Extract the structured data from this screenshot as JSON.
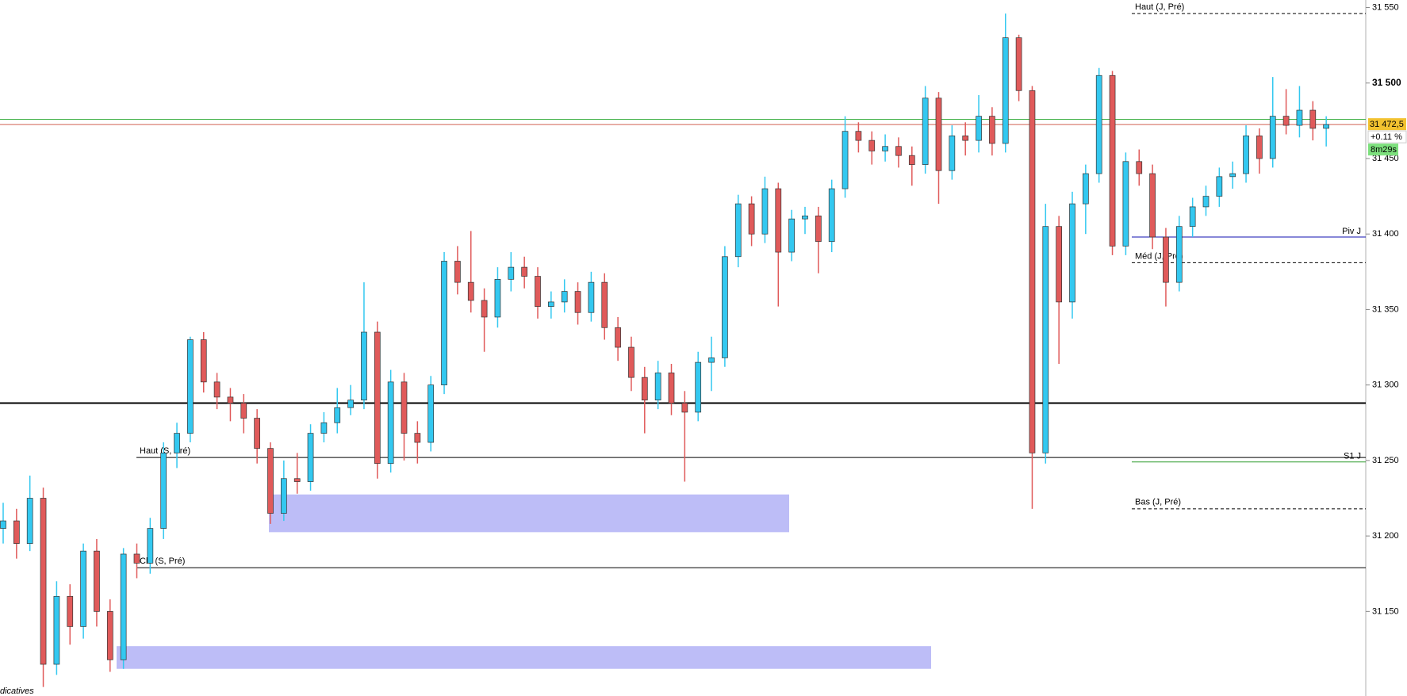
{
  "chart_data": {
    "type": "candlestick",
    "ylim": [
      31094,
      31555
    ],
    "yticks": [
      {
        "value": 31550,
        "label": "31 550"
      },
      {
        "value": 31500,
        "label": "31 500"
      },
      {
        "value": 31450,
        "label": "31 450"
      },
      {
        "value": 31400,
        "label": "31 400"
      },
      {
        "value": 31350,
        "label": "31 350"
      },
      {
        "value": 31300,
        "label": "31 300"
      },
      {
        "value": 31250,
        "label": "31 250"
      },
      {
        "value": 31200,
        "label": "31 200"
      },
      {
        "value": 31150,
        "label": "31 150"
      }
    ],
    "up_color": "#33c8f0",
    "down_color": "#e05a5a",
    "open": [
      31205,
      31210,
      31195,
      31225,
      31115,
      31160,
      31140,
      31190,
      31150,
      31118,
      31188,
      31182,
      31205,
      31255,
      31268,
      31330,
      31302,
      31292,
      31288,
      31278,
      31258,
      31215,
      31238,
      31236,
      31268,
      31275,
      31285,
      31290,
      31335,
      31248,
      31302,
      31268,
      31262,
      31300,
      31382,
      31368,
      31356,
      31345,
      31370,
      31378,
      31372,
      31352,
      31355,
      31362,
      31348,
      31368,
      31338,
      31325,
      31305,
      31290,
      31308,
      31288,
      31282,
      31315,
      31318,
      31385,
      31420,
      31400,
      31430,
      31388,
      31410,
      31412,
      31395,
      31430,
      31468,
      31462,
      31455,
      31458,
      31452,
      31446,
      31490,
      31442,
      31465,
      31462,
      31478,
      31460,
      31530,
      31495,
      31255,
      31405,
      31355,
      31420,
      31440,
      31505,
      31392,
      31448,
      31440,
      31398,
      31368,
      31405,
      31418,
      31425,
      31438,
      31440,
      31465,
      31450,
      31478,
      31472,
      31482,
      31470
    ],
    "high": [
      31222,
      31218,
      31240,
      31232,
      31170,
      31168,
      31195,
      31198,
      31158,
      31192,
      31195,
      31212,
      31262,
      31275,
      31332,
      31335,
      31308,
      31298,
      31294,
      31284,
      31262,
      31250,
      31255,
      31274,
      31282,
      31298,
      31300,
      31368,
      31342,
      31310,
      31308,
      31276,
      31306,
      31388,
      31392,
      31402,
      31364,
      31378,
      31388,
      31385,
      31378,
      31362,
      31370,
      31368,
      31375,
      31374,
      31345,
      31332,
      31312,
      31316,
      31314,
      31296,
      31322,
      31332,
      31392,
      31426,
      31425,
      31438,
      31434,
      31416,
      31418,
      31418,
      31436,
      31478,
      31474,
      31468,
      31466,
      31464,
      31458,
      31498,
      31494,
      31472,
      31474,
      31492,
      31484,
      31546,
      31532,
      31498,
      31420,
      31412,
      31428,
      31446,
      31510,
      31508,
      31454,
      31456,
      31446,
      31404,
      31412,
      31424,
      31432,
      31444,
      31448,
      31472,
      31470,
      31504,
      31496,
      31498,
      31488,
      31478
    ],
    "low": [
      31195,
      31185,
      31190,
      31100,
      31108,
      31128,
      31132,
      31140,
      31110,
      31112,
      31172,
      31175,
      31198,
      31245,
      31262,
      31295,
      31284,
      31276,
      31268,
      31248,
      31208,
      31210,
      31228,
      31230,
      31262,
      31268,
      31280,
      31284,
      31238,
      31242,
      31250,
      31248,
      31256,
      31294,
      31360,
      31348,
      31322,
      31338,
      31362,
      31364,
      31344,
      31344,
      31348,
      31340,
      31342,
      31330,
      31316,
      31296,
      31268,
      31284,
      31280,
      31236,
      31276,
      31296,
      31312,
      31378,
      31392,
      31394,
      31352,
      31382,
      31400,
      31374,
      31388,
      31424,
      31454,
      31446,
      31448,
      31444,
      31432,
      31440,
      31420,
      31436,
      31452,
      31454,
      31452,
      31454,
      31488,
      31218,
      31248,
      31314,
      31344,
      31400,
      31434,
      31386,
      31386,
      31432,
      31390,
      31352,
      31362,
      31398,
      31412,
      31418,
      31430,
      31434,
      31440,
      31444,
      31466,
      31464,
      31462,
      31458
    ],
    "close": [
      31210,
      31195,
      31225,
      31115,
      31160,
      31140,
      31190,
      31150,
      31118,
      31188,
      31182,
      31205,
      31255,
      31268,
      31330,
      31302,
      31292,
      31288,
      31278,
      31258,
      31215,
      31238,
      31236,
      31268,
      31275,
      31285,
      31290,
      31335,
      31248,
      31302,
      31268,
      31262,
      31300,
      31382,
      31368,
      31356,
      31345,
      31370,
      31378,
      31372,
      31352,
      31355,
      31362,
      31348,
      31368,
      31338,
      31325,
      31305,
      31290,
      31308,
      31288,
      31282,
      31315,
      31318,
      31385,
      31420,
      31400,
      31430,
      31388,
      31410,
      31412,
      31395,
      31430,
      31468,
      31462,
      31455,
      31458,
      31452,
      31446,
      31490,
      31442,
      31465,
      31462,
      31478,
      31460,
      31530,
      31495,
      31255,
      31405,
      31355,
      31420,
      31440,
      31505,
      31392,
      31448,
      31440,
      31398,
      31368,
      31405,
      31418,
      31425,
      31438,
      31440,
      31465,
      31450,
      31478,
      31472,
      31482,
      31470,
      31472.5
    ],
    "levels": [
      {
        "name": "Haut (J, Pré)",
        "value": 31546,
        "color": "#000000",
        "dashed": true
      },
      {
        "value": 31476,
        "color": "#3cb043"
      },
      {
        "value": 31472.5,
        "color": "#d06050"
      },
      {
        "name": "Piv J",
        "value": 31398,
        "color": "#1010b0"
      },
      {
        "name": "Méd (J, Pré)",
        "value": 31381,
        "color": "#000000",
        "dashed": true
      },
      {
        "value": 31288,
        "color": "#000000",
        "width": 2
      },
      {
        "name": "Haut (S, Pré)",
        "value": 31252,
        "color": "#000000"
      },
      {
        "name": "S1 J",
        "value": 31249,
        "color": "#2a9a2a"
      },
      {
        "name": "Bas (J, Pré)",
        "value": 31218,
        "color": "#000000",
        "dashed": true
      },
      {
        "name": "Clo (S, Pré)",
        "value": 31179,
        "color": "#000000"
      }
    ],
    "zones": [
      {
        "top": 31227.5,
        "bottom": 31202.5,
        "color": "#bdbdf7"
      },
      {
        "top": 31127,
        "bottom": 31112,
        "color": "#bdbdf7"
      }
    ],
    "price_tag": {
      "value": 31472.5,
      "label": "31 472,5"
    },
    "change": "+0.11 %",
    "timer": "8m29s",
    "footer": "dicatives"
  }
}
